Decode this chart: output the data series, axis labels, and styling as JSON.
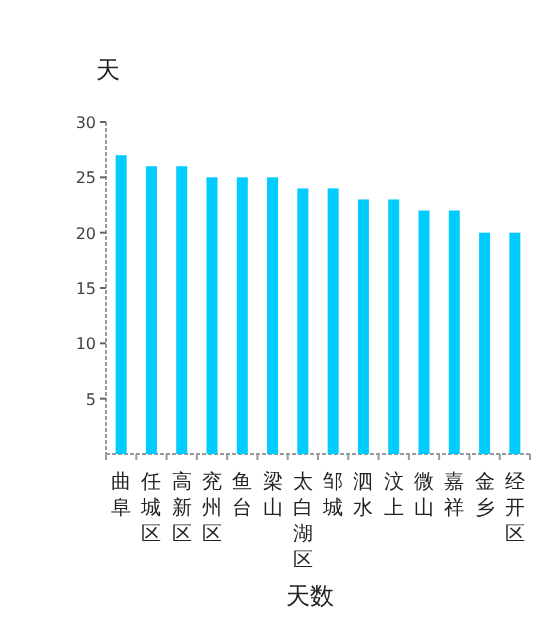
{
  "chart_data": {
    "type": "bar",
    "ylabel": "天",
    "xlabel": "天数",
    "categories": [
      "曲阜",
      "任城区",
      "高新区",
      "兖州区",
      "鱼台",
      "梁山",
      "太白湖区",
      "邹城",
      "泗水",
      "汶上",
      "微山",
      "嘉祥",
      "金乡",
      "经开区"
    ],
    "values": [
      27,
      26,
      26,
      25,
      25,
      25,
      24,
      24,
      23,
      23,
      22,
      22,
      20,
      20
    ],
    "color": "#00ccff",
    "ylim": [
      0,
      30
    ],
    "yticks": [
      5,
      10,
      15,
      20,
      25,
      30
    ]
  }
}
